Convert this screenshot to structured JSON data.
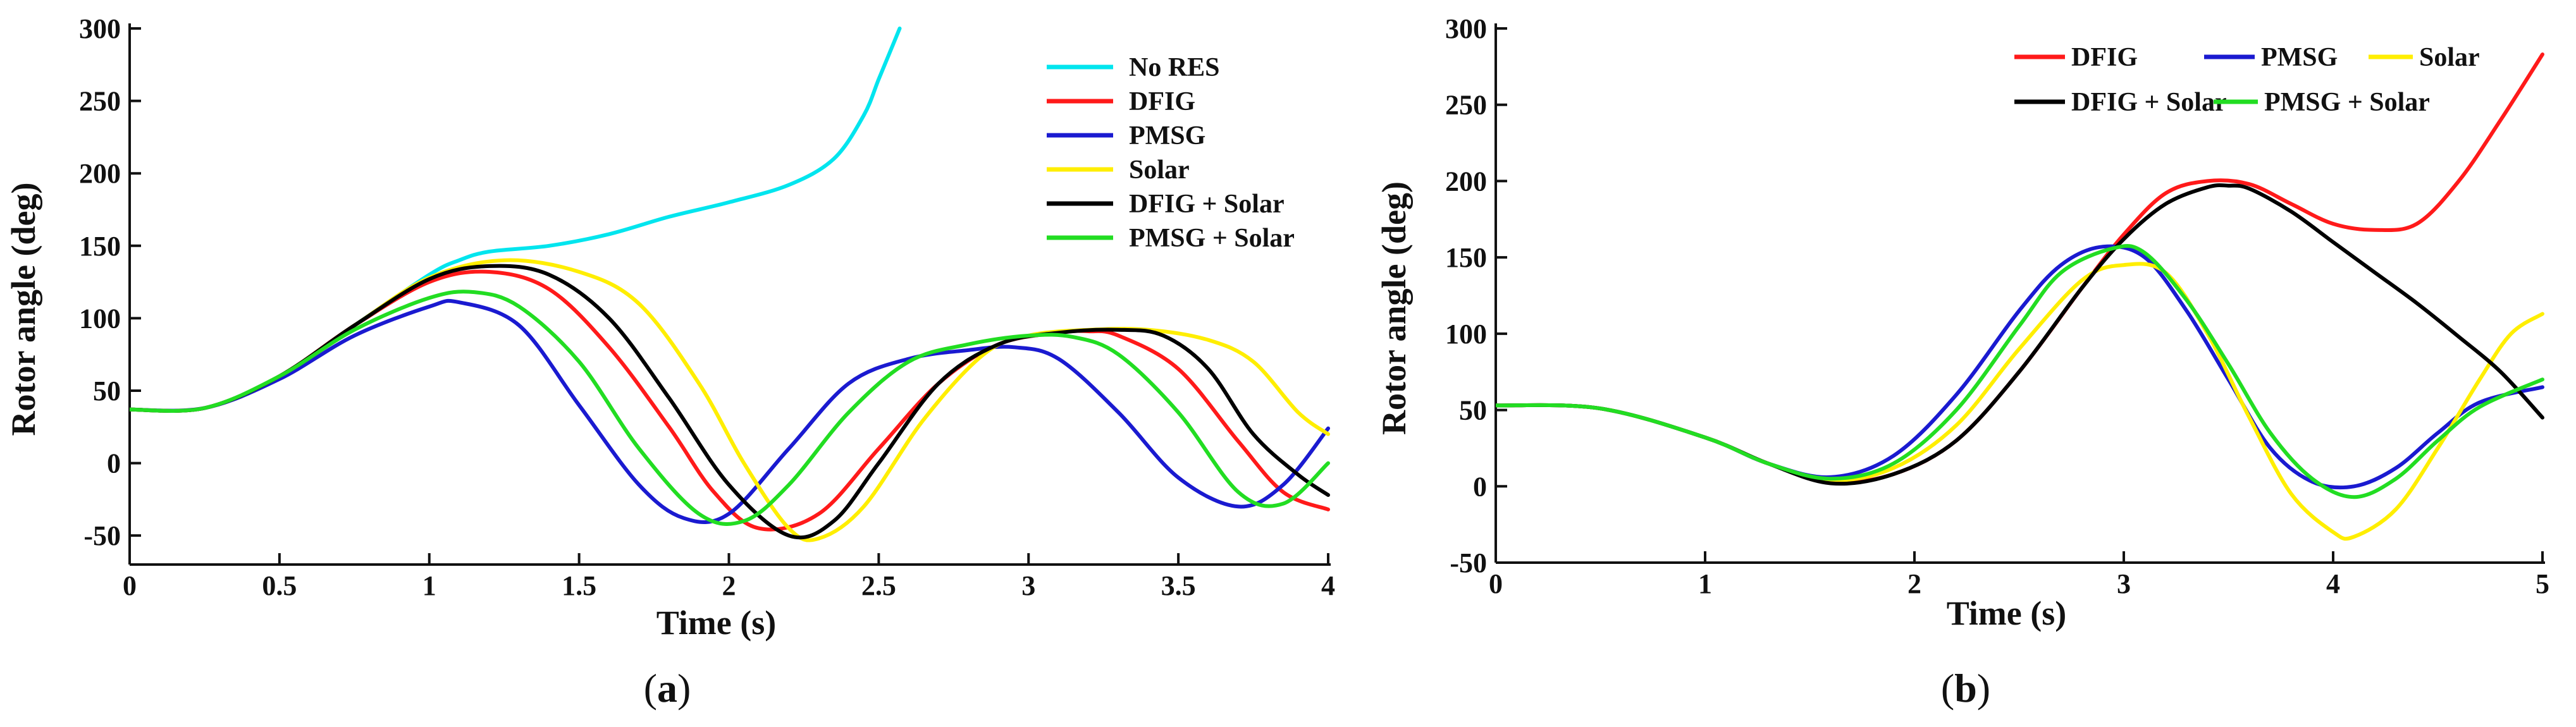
{
  "chart_data": [
    {
      "type": "line",
      "panel_label": "a",
      "title": "",
      "xlabel": "Time (s)",
      "ylabel": "Rotor angle (deg)",
      "xlim": [
        0,
        4
      ],
      "ylim": [
        -70,
        300
      ],
      "xticks": [
        0,
        0.5,
        1,
        1.5,
        2,
        2.5,
        3,
        3.5,
        4
      ],
      "xtick_labels": [
        "0",
        "0.5",
        "1",
        "1.5",
        "2",
        "2.5",
        "3",
        "3.5",
        "4"
      ],
      "yticks": [
        -50,
        0,
        50,
        100,
        150,
        200,
        250,
        300
      ],
      "ytick_labels": [
        "-50",
        "0",
        "50",
        "100",
        "150",
        "200",
        "250",
        "300"
      ],
      "grid": false,
      "legend_position": "top-right",
      "series": [
        {
          "name": "No RES",
          "color": "#00e5ee",
          "x": [
            0,
            0.25,
            0.5,
            0.75,
            1.0,
            1.1,
            1.2,
            1.4,
            1.6,
            1.8,
            2.0,
            2.2,
            2.35,
            2.45,
            2.5,
            2.55,
            2.57
          ],
          "y": [
            37,
            38,
            60,
            95,
            130,
            140,
            146,
            150,
            158,
            170,
            180,
            192,
            210,
            240,
            265,
            290,
            300
          ]
        },
        {
          "name": "DFIG",
          "color": "#ff1a1a",
          "x": [
            0,
            0.25,
            0.5,
            0.75,
            1.0,
            1.2,
            1.4,
            1.6,
            1.8,
            1.95,
            2.1,
            2.3,
            2.5,
            2.7,
            2.9,
            3.1,
            3.2,
            3.3,
            3.5,
            3.7,
            3.85,
            4.0
          ],
          "y": [
            37,
            38,
            60,
            95,
            125,
            132,
            120,
            80,
            25,
            -20,
            -45,
            -35,
            10,
            55,
            82,
            90,
            91,
            88,
            65,
            15,
            -20,
            -32
          ]
        },
        {
          "name": "PMSG",
          "color": "#1a1ad0",
          "x": [
            0,
            0.25,
            0.5,
            0.75,
            1.0,
            1.1,
            1.3,
            1.5,
            1.7,
            1.85,
            2.0,
            2.2,
            2.4,
            2.6,
            2.8,
            2.95,
            3.1,
            3.3,
            3.5,
            3.7,
            3.85,
            4.0
          ],
          "y": [
            37,
            38,
            58,
            88,
            108,
            111,
            95,
            40,
            -15,
            -38,
            -35,
            10,
            55,
            72,
            78,
            80,
            72,
            35,
            -10,
            -30,
            -15,
            24
          ]
        },
        {
          "name": "Solar",
          "color": "#ffee00",
          "x": [
            0,
            0.25,
            0.5,
            0.75,
            1.0,
            1.25,
            1.5,
            1.7,
            1.9,
            2.05,
            2.2,
            2.3,
            2.45,
            2.65,
            2.85,
            3.0,
            3.2,
            3.4,
            3.6,
            3.75,
            3.9,
            4.0
          ],
          "y": [
            37,
            38,
            60,
            95,
            128,
            140,
            132,
            110,
            55,
            0,
            -45,
            -52,
            -30,
            30,
            75,
            88,
            92,
            92,
            85,
            70,
            35,
            20
          ]
        },
        {
          "name": "DFIG + Solar",
          "color": "#000000",
          "x": [
            0,
            0.25,
            0.5,
            0.75,
            1.0,
            1.2,
            1.4,
            1.6,
            1.8,
            2.0,
            2.2,
            2.35,
            2.5,
            2.7,
            2.9,
            3.1,
            3.3,
            3.45,
            3.6,
            3.75,
            3.9,
            4.0
          ],
          "y": [
            37,
            38,
            60,
            95,
            127,
            136,
            130,
            100,
            45,
            -15,
            -50,
            -40,
            0,
            55,
            82,
            90,
            92,
            88,
            65,
            20,
            -8,
            -22
          ]
        },
        {
          "name": "PMSG + Solar",
          "color": "#22dd22",
          "x": [
            0,
            0.25,
            0.5,
            0.75,
            1.0,
            1.15,
            1.3,
            1.5,
            1.7,
            1.9,
            2.05,
            2.2,
            2.4,
            2.6,
            2.8,
            3.0,
            3.15,
            3.3,
            3.5,
            3.7,
            3.85,
            4.0
          ],
          "y": [
            37,
            38,
            60,
            92,
            114,
            118,
            108,
            70,
            10,
            -35,
            -40,
            -15,
            35,
            70,
            82,
            88,
            87,
            75,
            35,
            -20,
            -28,
            0
          ]
        }
      ]
    },
    {
      "type": "line",
      "panel_label": "b",
      "title": "",
      "xlabel": "Time (s)",
      "ylabel": "Rotor angle (deg)",
      "xlim": [
        0,
        5
      ],
      "ylim": [
        -50,
        300
      ],
      "xticks": [
        0,
        1,
        2,
        3,
        4,
        5
      ],
      "xtick_labels": [
        "0",
        "1",
        "2",
        "3",
        "4",
        "5"
      ],
      "yticks": [
        -50,
        0,
        50,
        100,
        150,
        200,
        250,
        300
      ],
      "ytick_labels": [
        "-50",
        "0",
        "50",
        "100",
        "150",
        "200",
        "250",
        "300"
      ],
      "grid": false,
      "legend_position": "top-right",
      "series": [
        {
          "name": "DFIG",
          "color": "#ff1a1a",
          "x": [
            0,
            0.5,
            1.0,
            1.3,
            1.6,
            1.9,
            2.2,
            2.5,
            2.8,
            3.0,
            3.2,
            3.4,
            3.6,
            3.8,
            4.0,
            4.2,
            4.4,
            4.6,
            4.8,
            5.0
          ],
          "y": [
            53,
            51,
            32,
            15,
            3,
            8,
            30,
            75,
            130,
            165,
            192,
            200,
            198,
            185,
            172,
            168,
            172,
            200,
            240,
            283
          ]
        },
        {
          "name": "PMSG",
          "color": "#1a1ad0",
          "x": [
            0,
            0.5,
            1.0,
            1.3,
            1.6,
            1.9,
            2.2,
            2.5,
            2.7,
            2.9,
            3.1,
            3.3,
            3.5,
            3.7,
            3.9,
            4.1,
            4.3,
            4.5,
            4.7,
            5.0
          ],
          "y": [
            53,
            51,
            32,
            15,
            6,
            20,
            60,
            115,
            145,
            157,
            150,
            115,
            70,
            25,
            3,
            0,
            12,
            35,
            55,
            65
          ]
        },
        {
          "name": "Solar",
          "color": "#ffee00",
          "x": [
            0,
            0.5,
            1.0,
            1.3,
            1.6,
            1.9,
            2.2,
            2.5,
            2.8,
            3.0,
            3.2,
            3.4,
            3.6,
            3.8,
            4.0,
            4.1,
            4.3,
            4.5,
            4.7,
            4.85,
            5.0
          ],
          "y": [
            53,
            51,
            32,
            15,
            4,
            12,
            40,
            90,
            135,
            145,
            140,
            100,
            45,
            -5,
            -30,
            -33,
            -15,
            25,
            70,
            100,
            113
          ]
        },
        {
          "name": "DFIG + Solar",
          "color": "#000000",
          "x": [
            0,
            0.5,
            1.0,
            1.3,
            1.6,
            1.9,
            2.2,
            2.5,
            2.8,
            3.0,
            3.2,
            3.4,
            3.5,
            3.6,
            3.8,
            4.0,
            4.2,
            4.4,
            4.6,
            4.8,
            5.0
          ],
          "y": [
            53,
            51,
            32,
            15,
            2,
            8,
            30,
            75,
            130,
            162,
            185,
            196,
            197,
            195,
            180,
            160,
            140,
            120,
            98,
            75,
            45
          ]
        },
        {
          "name": "PMSG + Solar",
          "color": "#22dd22",
          "x": [
            0,
            0.5,
            1.0,
            1.3,
            1.6,
            1.9,
            2.2,
            2.5,
            2.7,
            2.95,
            3.1,
            3.3,
            3.5,
            3.7,
            3.9,
            4.1,
            4.3,
            4.5,
            4.7,
            5.0
          ],
          "y": [
            53,
            51,
            32,
            15,
            5,
            15,
            50,
            105,
            140,
            156,
            153,
            122,
            80,
            35,
            5,
            -7,
            5,
            30,
            52,
            70
          ]
        }
      ]
    }
  ]
}
